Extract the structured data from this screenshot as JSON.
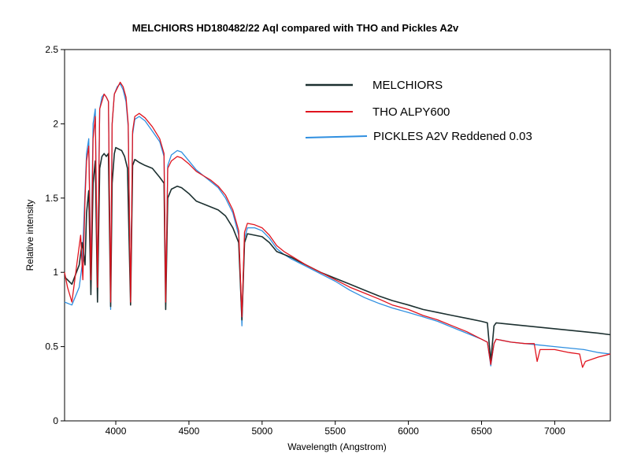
{
  "chart_data": {
    "type": "line",
    "title": "MELCHIORS HD180482/22 Aql   compared with THO and  Pickles A2v",
    "xlabel": "Wavelength (Angstrom)",
    "ylabel": "Relative intensity",
    "xlim": [
      3650,
      7380
    ],
    "ylim": [
      0,
      2.5
    ],
    "xticks": [
      {
        "value": 4000,
        "label": "4000"
      },
      {
        "value": 4500,
        "label": "4500"
      },
      {
        "value": 5000,
        "label": "5000"
      },
      {
        "value": 5500,
        "label": "5500"
      },
      {
        "value": 6000,
        "label": "6000"
      },
      {
        "value": 6500,
        "label": "6500"
      },
      {
        "value": 7000,
        "label": "7000"
      }
    ],
    "yticks": [
      {
        "value": 0,
        "label": "0"
      },
      {
        "value": 0.5,
        "label": "0.5"
      },
      {
        "value": 1,
        "label": "1"
      },
      {
        "value": 1.5,
        "label": "1.5"
      },
      {
        "value": 2,
        "label": "2"
      },
      {
        "value": 2.5,
        "label": "2.5"
      }
    ],
    "grid": false,
    "legend_position": "top-right",
    "series": [
      {
        "name": "MELCHIORS",
        "color": "#1c3030",
        "points": [
          [
            3650,
            0.97
          ],
          [
            3700,
            0.92
          ],
          [
            3750,
            1.05
          ],
          [
            3770,
            1.2
          ],
          [
            3790,
            1.05
          ],
          [
            3800,
            1.4
          ],
          [
            3815,
            1.55
          ],
          [
            3830,
            0.85
          ],
          [
            3845,
            1.6
          ],
          [
            3860,
            1.75
          ],
          [
            3875,
            0.8
          ],
          [
            3890,
            1.7
          ],
          [
            3905,
            1.78
          ],
          [
            3920,
            1.8
          ],
          [
            3935,
            1.78
          ],
          [
            3950,
            1.8
          ],
          [
            3965,
            0.77
          ],
          [
            3975,
            1.6
          ],
          [
            3990,
            1.8
          ],
          [
            4000,
            1.84
          ],
          [
            4020,
            1.83
          ],
          [
            4040,
            1.82
          ],
          [
            4060,
            1.78
          ],
          [
            4080,
            1.7
          ],
          [
            4101,
            0.78
          ],
          [
            4115,
            1.72
          ],
          [
            4130,
            1.76
          ],
          [
            4160,
            1.74
          ],
          [
            4200,
            1.72
          ],
          [
            4250,
            1.7
          ],
          [
            4300,
            1.64
          ],
          [
            4330,
            1.6
          ],
          [
            4341,
            0.75
          ],
          [
            4355,
            1.5
          ],
          [
            4380,
            1.56
          ],
          [
            4420,
            1.58
          ],
          [
            4450,
            1.57
          ],
          [
            4500,
            1.53
          ],
          [
            4550,
            1.48
          ],
          [
            4600,
            1.46
          ],
          [
            4650,
            1.44
          ],
          [
            4700,
            1.42
          ],
          [
            4750,
            1.38
          ],
          [
            4800,
            1.3
          ],
          [
            4840,
            1.2
          ],
          [
            4862,
            0.68
          ],
          [
            4880,
            1.2
          ],
          [
            4900,
            1.26
          ],
          [
            4950,
            1.25
          ],
          [
            5000,
            1.24
          ],
          [
            5050,
            1.2
          ],
          [
            5100,
            1.14
          ],
          [
            5150,
            1.12
          ],
          [
            5200,
            1.1
          ],
          [
            5300,
            1.05
          ],
          [
            5400,
            1.0
          ],
          [
            5500,
            0.96
          ],
          [
            5600,
            0.92
          ],
          [
            5700,
            0.88
          ],
          [
            5800,
            0.84
          ],
          [
            5890,
            0.81
          ],
          [
            6000,
            0.78
          ],
          [
            6100,
            0.75
          ],
          [
            6200,
            0.73
          ],
          [
            6300,
            0.71
          ],
          [
            6400,
            0.69
          ],
          [
            6500,
            0.67
          ],
          [
            6540,
            0.66
          ],
          [
            6563,
            0.4
          ],
          [
            6585,
            0.64
          ],
          [
            6600,
            0.66
          ],
          [
            6700,
            0.65
          ],
          [
            6800,
            0.64
          ],
          [
            6900,
            0.63
          ],
          [
            7000,
            0.62
          ],
          [
            7100,
            0.61
          ],
          [
            7200,
            0.6
          ],
          [
            7300,
            0.59
          ],
          [
            7380,
            0.58
          ]
        ]
      },
      {
        "name": "THO ALPY600",
        "color": "#e0141e",
        "points": [
          [
            3650,
            1.0
          ],
          [
            3670,
            0.9
          ],
          [
            3700,
            0.8
          ],
          [
            3720,
            0.95
          ],
          [
            3740,
            1.1
          ],
          [
            3760,
            1.25
          ],
          [
            3775,
            0.95
          ],
          [
            3790,
            1.5
          ],
          [
            3800,
            1.75
          ],
          [
            3815,
            1.85
          ],
          [
            3830,
            0.95
          ],
          [
            3845,
            1.9
          ],
          [
            3860,
            2.05
          ],
          [
            3875,
            0.9
          ],
          [
            3890,
            2.1
          ],
          [
            3905,
            2.15
          ],
          [
            3920,
            2.2
          ],
          [
            3935,
            2.18
          ],
          [
            3950,
            2.15
          ],
          [
            3965,
            0.8
          ],
          [
            3975,
            2.0
          ],
          [
            3990,
            2.2
          ],
          [
            4010,
            2.24
          ],
          [
            4030,
            2.28
          ],
          [
            4050,
            2.25
          ],
          [
            4070,
            2.18
          ],
          [
            4085,
            2.0
          ],
          [
            4101,
            0.8
          ],
          [
            4115,
            1.95
          ],
          [
            4130,
            2.05
          ],
          [
            4160,
            2.07
          ],
          [
            4200,
            2.04
          ],
          [
            4250,
            1.98
          ],
          [
            4300,
            1.9
          ],
          [
            4330,
            1.8
          ],
          [
            4341,
            0.8
          ],
          [
            4355,
            1.7
          ],
          [
            4380,
            1.75
          ],
          [
            4420,
            1.78
          ],
          [
            4450,
            1.77
          ],
          [
            4500,
            1.73
          ],
          [
            4550,
            1.68
          ],
          [
            4600,
            1.65
          ],
          [
            4650,
            1.62
          ],
          [
            4700,
            1.58
          ],
          [
            4750,
            1.52
          ],
          [
            4800,
            1.42
          ],
          [
            4840,
            1.28
          ],
          [
            4862,
            0.7
          ],
          [
            4880,
            1.27
          ],
          [
            4900,
            1.33
          ],
          [
            4950,
            1.32
          ],
          [
            5000,
            1.3
          ],
          [
            5050,
            1.25
          ],
          [
            5100,
            1.18
          ],
          [
            5150,
            1.14
          ],
          [
            5200,
            1.11
          ],
          [
            5300,
            1.05
          ],
          [
            5400,
            1.0
          ],
          [
            5500,
            0.95
          ],
          [
            5600,
            0.9
          ],
          [
            5700,
            0.86
          ],
          [
            5800,
            0.82
          ],
          [
            5890,
            0.78
          ],
          [
            6000,
            0.75
          ],
          [
            6100,
            0.71
          ],
          [
            6200,
            0.68
          ],
          [
            6300,
            0.64
          ],
          [
            6400,
            0.6
          ],
          [
            6500,
            0.55
          ],
          [
            6540,
            0.53
          ],
          [
            6563,
            0.38
          ],
          [
            6585,
            0.52
          ],
          [
            6600,
            0.55
          ],
          [
            6700,
            0.53
          ],
          [
            6800,
            0.52
          ],
          [
            6860,
            0.52
          ],
          [
            6880,
            0.4
          ],
          [
            6900,
            0.48
          ],
          [
            7000,
            0.48
          ],
          [
            7100,
            0.46
          ],
          [
            7170,
            0.45
          ],
          [
            7190,
            0.36
          ],
          [
            7210,
            0.4
          ],
          [
            7300,
            0.43
          ],
          [
            7380,
            0.45
          ]
        ]
      },
      {
        "name": "PICKLES A2V Reddened 0.03",
        "color": "#2f8fe0",
        "points": [
          [
            3650,
            0.8
          ],
          [
            3700,
            0.78
          ],
          [
            3750,
            0.9
          ],
          [
            3770,
            1.05
          ],
          [
            3790,
            1.55
          ],
          [
            3800,
            1.8
          ],
          [
            3815,
            1.9
          ],
          [
            3830,
            1.0
          ],
          [
            3845,
            2.0
          ],
          [
            3860,
            2.1
          ],
          [
            3875,
            0.9
          ],
          [
            3890,
            2.1
          ],
          [
            3905,
            2.18
          ],
          [
            3920,
            2.2
          ],
          [
            3935,
            2.18
          ],
          [
            3950,
            2.15
          ],
          [
            3965,
            0.75
          ],
          [
            3975,
            2.0
          ],
          [
            3990,
            2.2
          ],
          [
            4010,
            2.25
          ],
          [
            4030,
            2.27
          ],
          [
            4050,
            2.23
          ],
          [
            4070,
            2.15
          ],
          [
            4085,
            1.98
          ],
          [
            4101,
            0.8
          ],
          [
            4115,
            1.93
          ],
          [
            4130,
            2.03
          ],
          [
            4160,
            2.05
          ],
          [
            4200,
            2.02
          ],
          [
            4250,
            1.95
          ],
          [
            4300,
            1.88
          ],
          [
            4330,
            1.78
          ],
          [
            4341,
            0.8
          ],
          [
            4355,
            1.72
          ],
          [
            4380,
            1.79
          ],
          [
            4420,
            1.82
          ],
          [
            4450,
            1.81
          ],
          [
            4500,
            1.75
          ],
          [
            4550,
            1.69
          ],
          [
            4600,
            1.65
          ],
          [
            4650,
            1.61
          ],
          [
            4700,
            1.57
          ],
          [
            4750,
            1.5
          ],
          [
            4800,
            1.4
          ],
          [
            4840,
            1.25
          ],
          [
            4862,
            0.64
          ],
          [
            4880,
            1.23
          ],
          [
            4900,
            1.3
          ],
          [
            4950,
            1.3
          ],
          [
            5000,
            1.28
          ],
          [
            5050,
            1.23
          ],
          [
            5100,
            1.16
          ],
          [
            5150,
            1.12
          ],
          [
            5200,
            1.09
          ],
          [
            5300,
            1.04
          ],
          [
            5400,
            0.99
          ],
          [
            5500,
            0.94
          ],
          [
            5600,
            0.88
          ],
          [
            5700,
            0.83
          ],
          [
            5800,
            0.79
          ],
          [
            5890,
            0.76
          ],
          [
            6000,
            0.73
          ],
          [
            6100,
            0.7
          ],
          [
            6200,
            0.67
          ],
          [
            6300,
            0.63
          ],
          [
            6400,
            0.59
          ],
          [
            6500,
            0.55
          ],
          [
            6540,
            0.53
          ],
          [
            6563,
            0.37
          ],
          [
            6585,
            0.52
          ],
          [
            6600,
            0.55
          ],
          [
            6700,
            0.53
          ],
          [
            6800,
            0.52
          ],
          [
            6900,
            0.51
          ],
          [
            7000,
            0.5
          ],
          [
            7100,
            0.49
          ],
          [
            7200,
            0.48
          ],
          [
            7300,
            0.46
          ],
          [
            7380,
            0.45
          ]
        ]
      }
    ]
  }
}
